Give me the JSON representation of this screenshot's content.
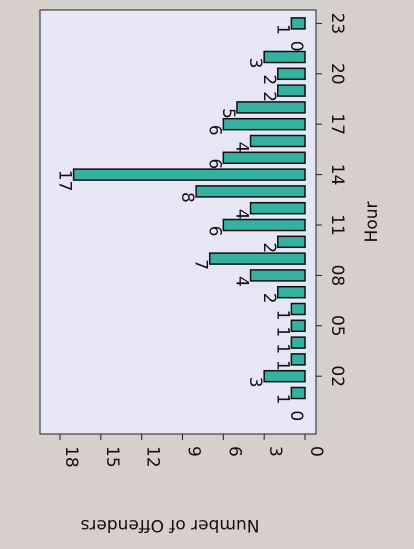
{
  "chart_data": {
    "type": "bar",
    "orientation": "horizontal-rotated",
    "xlabel": "Hour",
    "ylabel": "Number of Offenders",
    "categories": [
      0,
      1,
      2,
      3,
      4,
      5,
      6,
      7,
      8,
      9,
      10,
      11,
      12,
      13,
      14,
      15,
      16,
      17,
      18,
      19,
      20,
      21,
      22,
      23
    ],
    "x_tick_labels": [
      "02",
      "05",
      "08",
      "11",
      "14",
      "17",
      "20",
      "23"
    ],
    "y_ticks": [
      0,
      3,
      6,
      9,
      12,
      15,
      18
    ],
    "ylim": [
      0,
      18
    ],
    "values": [
      0,
      1,
      3,
      1,
      1,
      1,
      1,
      2,
      4,
      7,
      2,
      6,
      4,
      8,
      17,
      6,
      4,
      6,
      5,
      2,
      2,
      3,
      0,
      1
    ],
    "data_labels": [
      "0",
      "1",
      "3",
      "1",
      "1",
      "1",
      "1",
      "2",
      "4",
      "7",
      "2",
      "6",
      "4",
      "8",
      "17",
      "6",
      "4",
      "6",
      "5",
      "2",
      "2",
      "3",
      "0",
      "1"
    ],
    "bar_color": "#34b1a1",
    "plot_background": "#e6e6f4",
    "grid": false
  }
}
